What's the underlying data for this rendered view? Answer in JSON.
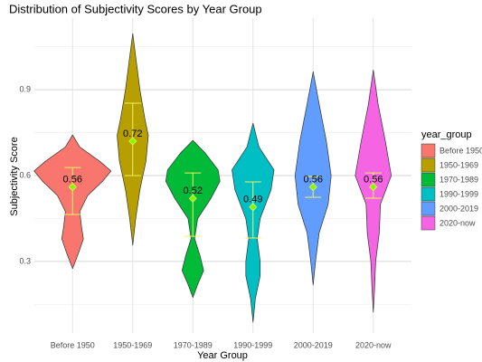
{
  "chart_data": {
    "type": "violin",
    "title": "Distribution of Subjectivity Scores by Year Group",
    "xlabel": "Year Group",
    "ylabel": "Subjectivity Score",
    "legend_title": "year_group",
    "categories": [
      "Before 1950",
      "1950-1969",
      "1970-1989",
      "1990-1999",
      "2000-2019",
      "2020-now"
    ],
    "colors": [
      "#F8766D",
      "#B79F00",
      "#00BA38",
      "#00BFC4",
      "#619CFF",
      "#F564E3"
    ],
    "means": [
      0.56,
      0.72,
      0.52,
      0.49,
      0.56,
      0.56
    ],
    "error_low": [
      0.464,
      0.6,
      0.388,
      0.382,
      0.524,
      0.521
    ],
    "error_high": [
      0.628,
      0.853,
      0.609,
      0.578,
      0.597,
      0.609
    ],
    "profiles": [
      {
        "y": [
          0.742,
          0.7,
          0.65,
          0.616,
          0.58,
          0.53,
          0.474,
          0.42,
          0.379,
          0.33,
          0.275
        ],
        "halfwidth": [
          0,
          0.12,
          0.45,
          0.64,
          0.5,
          0.25,
          0.12,
          0.15,
          0.18,
          0.1,
          0
        ]
      },
      {
        "y": [
          1.096,
          1.0,
          0.9,
          0.8,
          0.74,
          0.65,
          0.55,
          0.45,
          0.357
        ],
        "halfwidth": [
          0,
          0.06,
          0.12,
          0.2,
          0.26,
          0.22,
          0.12,
          0.05,
          0
        ]
      },
      {
        "y": [
          0.723,
          0.68,
          0.62,
          0.58,
          0.52,
          0.45,
          0.38,
          0.32,
          0.268,
          0.22,
          0.174
        ],
        "halfwidth": [
          0,
          0.2,
          0.42,
          0.45,
          0.3,
          0.08,
          0.03,
          0.12,
          0.18,
          0.08,
          0
        ]
      },
      {
        "y": [
          0.783,
          0.7,
          0.62,
          0.55,
          0.45,
          0.38,
          0.3,
          0.25,
          0.17,
          0.088
        ],
        "halfwidth": [
          0,
          0.1,
          0.35,
          0.3,
          0.12,
          0.07,
          0.12,
          0.12,
          0.04,
          0
        ]
      },
      {
        "y": [
          0.963,
          0.85,
          0.72,
          0.6,
          0.5,
          0.4,
          0.3,
          0.218
        ],
        "halfwidth": [
          0,
          0.1,
          0.22,
          0.3,
          0.25,
          0.1,
          0.04,
          0
        ]
      },
      {
        "y": [
          0.969,
          0.85,
          0.72,
          0.6,
          0.5,
          0.4,
          0.3,
          0.2,
          0.123
        ],
        "halfwidth": [
          0,
          0.08,
          0.2,
          0.3,
          0.12,
          0.1,
          0.04,
          0.02,
          0
        ]
      }
    ],
    "ylim": [
      0.05,
      1.15
    ],
    "yticks": [
      0.3,
      0.6,
      0.9
    ],
    "yminor": [
      0.15,
      0.45,
      0.75,
      1.05
    ],
    "grid": true
  }
}
